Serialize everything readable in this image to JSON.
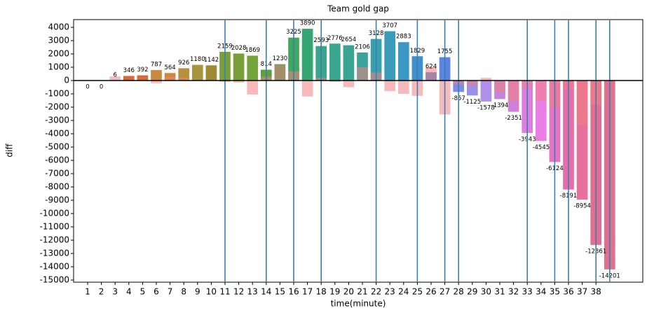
{
  "chart_data": {
    "type": "bar",
    "title": "Team gold gap",
    "xlabel": "time(minute)",
    "ylabel": "diff",
    "categories": [
      1,
      2,
      3,
      4,
      5,
      6,
      7,
      8,
      9,
      10,
      11,
      12,
      13,
      14,
      15,
      16,
      17,
      18,
      19,
      20,
      21,
      22,
      23,
      24,
      25,
      26,
      27,
      28,
      29,
      30,
      31,
      32,
      33,
      34,
      35,
      36,
      37,
      38,
      null
    ],
    "series": [
      {
        "colors": [
          "#f08080",
          "#f08080",
          "#e8836d",
          "#d9683c",
          "#d96a3a",
          "#c98a3c",
          "#c68a3a",
          "#b8903c",
          "#a99540",
          "#a08a33",
          "#7a9e3a",
          "#7a9e3a",
          "#76a23c",
          "#5aa040",
          "#4aa050",
          "#3ea85d",
          "#35a672",
          "#3aa58a",
          "#3aa68e",
          "#3aa592",
          "#3aa39a",
          "#3aa0ab",
          "#3a9cb8",
          "#3b97c4",
          "#4090d0",
          "#4a89da",
          "#5a85e0",
          "#7a8ce8",
          "#9a90ea",
          "#b090ea",
          "#c085dc",
          "#d080d8",
          "#e07ee0",
          "#ea7ee6",
          "#e872c4",
          "#e86ca8",
          "#e8709c",
          "#e46e90",
          "#e07090"
        ],
        "values": [
          0,
          0,
          6,
          346,
          392,
          787,
          564,
          926,
          1180,
          1142,
          2159,
          2028,
          1869,
          814,
          1230,
          3225,
          3890,
          2593,
          2776,
          2654,
          2106,
          3128,
          3707,
          2883,
          1829,
          624,
          1755,
          -857,
          -1125,
          -1578,
          -1394,
          -2351,
          -3943,
          -4545,
          -6124,
          -8191,
          -8954,
          -12361,
          -14201
        ]
      },
      {
        "color": "#f08080",
        "values": [
          null,
          null,
          300,
          null,
          null,
          -200,
          300,
          200,
          null,
          null,
          -100,
          -150,
          -1050,
          300,
          1200,
          700,
          -1200,
          200,
          -100,
          -500,
          1000,
          600,
          -800,
          -1000,
          -1150,
          1000,
          -2550,
          -300,
          -400,
          200,
          -900,
          -1550,
          -550,
          -1550,
          -2050,
          -700,
          -3350,
          -1800,
          null
        ]
      }
    ],
    "vlines": [
      11,
      14,
      16,
      18,
      22,
      25,
      27,
      28,
      33,
      35,
      36,
      38,
      39
    ],
    "vline_color": "#3a7fb0",
    "ylim": [
      -15160,
      4580
    ],
    "yticks": [
      4000,
      3000,
      2000,
      1000,
      0,
      -1000,
      -2000,
      -3000,
      -4000,
      -5000,
      -6000,
      -7000,
      -8000,
      -9000,
      -10000,
      -11000,
      -12000,
      -13000,
      -14000,
      -15000
    ]
  }
}
